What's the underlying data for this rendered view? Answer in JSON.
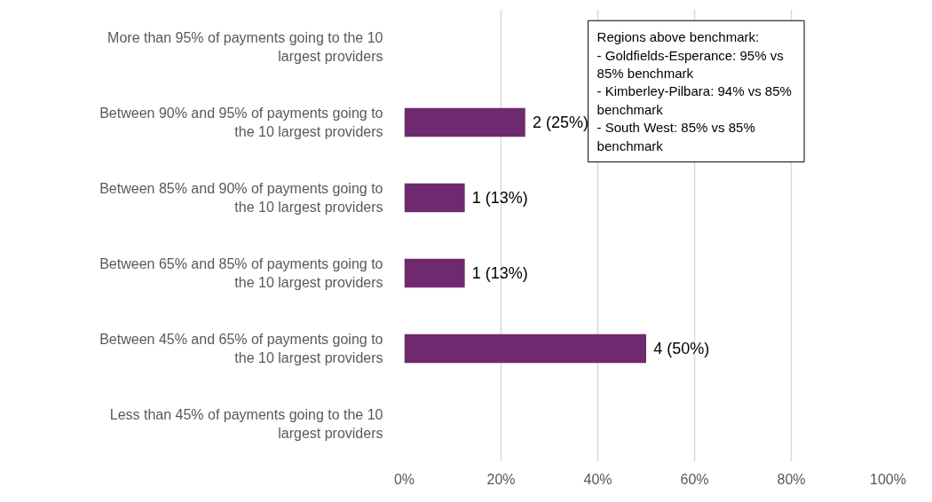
{
  "chart_data": {
    "type": "bar",
    "orientation": "horizontal",
    "categories": [
      "More than 95% of payments going to the 10 largest providers",
      "Between 90% and 95% of payments going to the 10 largest providers",
      "Between 85% and 90% of payments going to the 10 largest providers",
      "Between 65% and 85% of payments going to the 10 largest providers",
      "Between 45% and 65% of payments going to the 10 largest providers",
      "Less than 45% of payments going to the 10 largest providers"
    ],
    "values": [
      0,
      25,
      12.5,
      12.5,
      50,
      0
    ],
    "value_labels": [
      null,
      "2 (25%)",
      "1 (13%)",
      "1 (13%)",
      "4 (50%)",
      null
    ],
    "color": "#6f2a6f",
    "xlim": [
      0,
      100
    ],
    "xticks": [
      {
        "value": 0,
        "label": "0%"
      },
      {
        "value": 20,
        "label": "20%"
      },
      {
        "value": 40,
        "label": "40%"
      },
      {
        "value": 60,
        "label": "60%"
      },
      {
        "value": 80,
        "label": "80%"
      },
      {
        "value": 100,
        "label": "100%"
      }
    ],
    "grid": "x",
    "annotations": [
      "Regions above benchmark:\n - Goldfields-Esperance: 95% vs 85% benchmark\n - Kimberley-Pilbara: 94% vs 85% benchmark\n - South West: 85% vs 85% benchmark"
    ]
  }
}
